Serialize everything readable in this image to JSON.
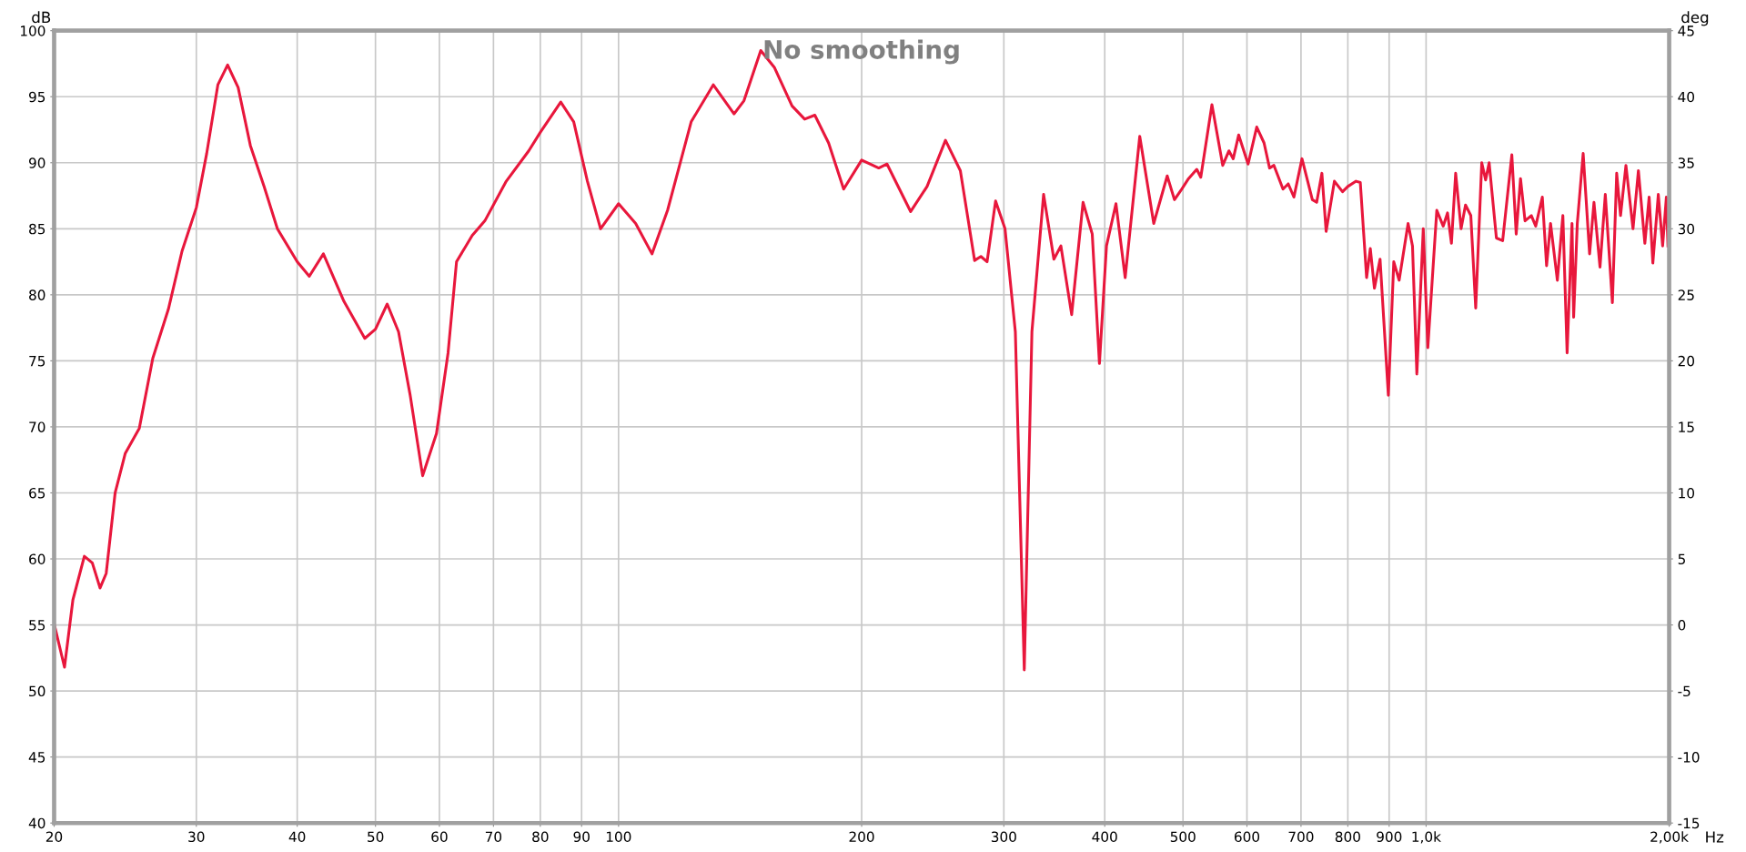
{
  "chart_data": {
    "type": "line",
    "title": "No smoothing",
    "xlabel": "Hz",
    "ylabel": "dB",
    "y2label": "deg",
    "log": "x",
    "grid": true,
    "legend": false,
    "marker": "none",
    "line_style": "solid",
    "xlim": [
      20,
      2000
    ],
    "xticks": [
      20,
      30,
      40,
      50,
      60,
      70,
      80,
      90,
      100,
      200,
      300,
      400,
      500,
      600,
      700,
      800,
      900,
      {
        "value": 1000,
        "label": "1,0k"
      },
      {
        "value": 2000,
        "label": "2,00k"
      }
    ],
    "ylim": [
      40,
      100
    ],
    "yticks": [
      40,
      45,
      50,
      55,
      60,
      65,
      70,
      75,
      80,
      85,
      90,
      95,
      100
    ],
    "y2lim": [
      -15,
      45
    ],
    "y2ticks": [
      -15,
      -10,
      -5,
      0,
      5,
      10,
      15,
      20,
      25,
      30,
      35,
      40,
      45
    ],
    "x": [
      20,
      20.6,
      21.1,
      21.8,
      22.3,
      22.8,
      23.2,
      23.8,
      24.5,
      25.5,
      26.5,
      27.7,
      28.8,
      30,
      30.9,
      31.9,
      32.8,
      33.8,
      35,
      36.4,
      37.8,
      40,
      41.4,
      43.1,
      45.7,
      48.5,
      50,
      51.7,
      53.4,
      55.2,
      57.2,
      59.5,
      61.5,
      63,
      65.9,
      68.3,
      72.6,
      77.4,
      80,
      84.8,
      88,
      91.5,
      95,
      100,
      105,
      110,
      115,
      123,
      131,
      139,
      143,
      150,
      156,
      164,
      170,
      175,
      182,
      190,
      200,
      210,
      215,
      230,
      241,
      254,
      265,
      276,
      281,
      286,
      293,
      301,
      310,
      318,
      325,
      336,
      346,
      353,
      364,
      376,
      386,
      394,
      402,
      413,
      424,
      442,
      460,
      478,
      488,
      497,
      508,
      520,
      526,
      543,
      560,
      570,
      577,
      586,
      602,
      617,
      630,
      640,
      648,
      665,
      675,
      686,
      702,
      723,
      732,
      743,
      752,
      770,
      788,
      800,
      819,
      829,
      844,
      853,
      863,
      877,
      898,
      912,
      926,
      950,
      962,
      974,
      992,
      1005,
      1031,
      1050,
      1063,
      1075,
      1088,
      1105,
      1119,
      1136,
      1152,
      1172,
      1185,
      1197,
      1222,
      1244,
      1277,
      1293,
      1309,
      1326,
      1350,
      1367,
      1393,
      1410,
      1426,
      1454,
      1477,
      1495,
      1516,
      1523,
      1539,
      1565,
      1594,
      1614,
      1642,
      1667,
      1701,
      1722,
      1741,
      1768,
      1804,
      1832,
      1866,
      1889,
      1909,
      1939,
      1963,
      1984,
      1993
    ],
    "series": [
      {
        "color": "#e8173c",
        "values": [
          55.1,
          51.8,
          56.9,
          60.2,
          59.7,
          57.8,
          58.9,
          65.0,
          68.0,
          69.9,
          75.2,
          78.9,
          83.3,
          86.6,
          90.7,
          95.9,
          97.4,
          95.7,
          91.3,
          88.2,
          85.0,
          82.5,
          81.4,
          83.1,
          79.5,
          76.7,
          77.4,
          79.3,
          77.2,
          72.4,
          66.3,
          69.5,
          75.6,
          82.5,
          84.5,
          85.6,
          88.6,
          90.9,
          92.3,
          94.6,
          93.1,
          88.6,
          85.0,
          86.9,
          85.4,
          83.1,
          86.4,
          93.1,
          95.9,
          93.7,
          94.7,
          98.5,
          97.2,
          94.3,
          93.3,
          93.6,
          91.5,
          88.0,
          90.2,
          89.6,
          89.9,
          86.3,
          88.2,
          91.7,
          89.4,
          82.6,
          82.9,
          82.5,
          87.1,
          85.0,
          77.2,
          51.6,
          77.2,
          87.6,
          82.7,
          83.7,
          78.5,
          87.0,
          84.6,
          74.8,
          83.7,
          86.9,
          81.3,
          92.0,
          85.4,
          89.0,
          87.2,
          87.9,
          88.8,
          89.5,
          88.9,
          94.4,
          89.8,
          90.9,
          90.3,
          92.1,
          89.9,
          92.7,
          91.5,
          89.6,
          89.8,
          88.0,
          88.4,
          87.4,
          90.3,
          87.2,
          87.0,
          89.2,
          84.8,
          88.6,
          87.8,
          88.2,
          88.6,
          88.5,
          81.3,
          83.5,
          80.5,
          82.7,
          72.4,
          82.5,
          81.1,
          85.4,
          83.7,
          74.0,
          85.0,
          76.0,
          86.4,
          85.2,
          86.2,
          83.9,
          89.2,
          85.0,
          86.8,
          86.0,
          79.0,
          90.0,
          88.7,
          90.0,
          84.3,
          84.1,
          90.6,
          84.6,
          88.8,
          85.6,
          86.0,
          85.2,
          87.4,
          82.2,
          85.4,
          81.1,
          86.0,
          75.6,
          85.4,
          78.3,
          85.4,
          90.7,
          83.1,
          87.0,
          82.1,
          87.6,
          79.4,
          89.2,
          86.0,
          89.8,
          85.0,
          89.4,
          83.9,
          87.4,
          82.4,
          87.6,
          83.7,
          87.4,
          83.7
        ]
      }
    ]
  }
}
